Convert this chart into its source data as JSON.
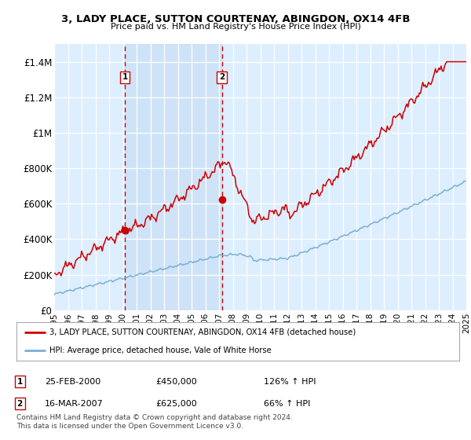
{
  "title": "3, LADY PLACE, SUTTON COURTENAY, ABINGDON, OX14 4FB",
  "subtitle": "Price paid vs. HM Land Registry's House Price Index (HPI)",
  "legend_line1": "3, LADY PLACE, SUTTON COURTENAY, ABINGDON, OX14 4FB (detached house)",
  "legend_line2": "HPI: Average price, detached house, Vale of White Horse",
  "table_rows": [
    {
      "num": "1",
      "date": "25-FEB-2000",
      "price": "£450,000",
      "hpi": "126% ↑ HPI"
    },
    {
      "num": "2",
      "date": "16-MAR-2007",
      "price": "£625,000",
      "hpi": "66% ↑ HPI"
    }
  ],
  "footnote": "Contains HM Land Registry data © Crown copyright and database right 2024.\nThis data is licensed under the Open Government Licence v3.0.",
  "sale1_year": 2000.15,
  "sale1_price": 450000,
  "sale2_year": 2007.21,
  "sale2_price": 625000,
  "red_line_color": "#cc0000",
  "blue_line_color": "#7aafd4",
  "background_color": "#ffffff",
  "plot_bg_color": "#ddeeff",
  "grid_color": "#ffffff",
  "dashed_line_color": "#cc0000",
  "ylim": [
    0,
    1500000
  ],
  "yticks": [
    0,
    200000,
    400000,
    600000,
    800000,
    1000000,
    1200000,
    1400000
  ],
  "ytick_labels": [
    "£0",
    "£200K",
    "£400K",
    "£600K",
    "£800K",
    "£1M",
    "£1.2M",
    "£1.4M"
  ],
  "xmin": 1995,
  "xmax": 2025
}
